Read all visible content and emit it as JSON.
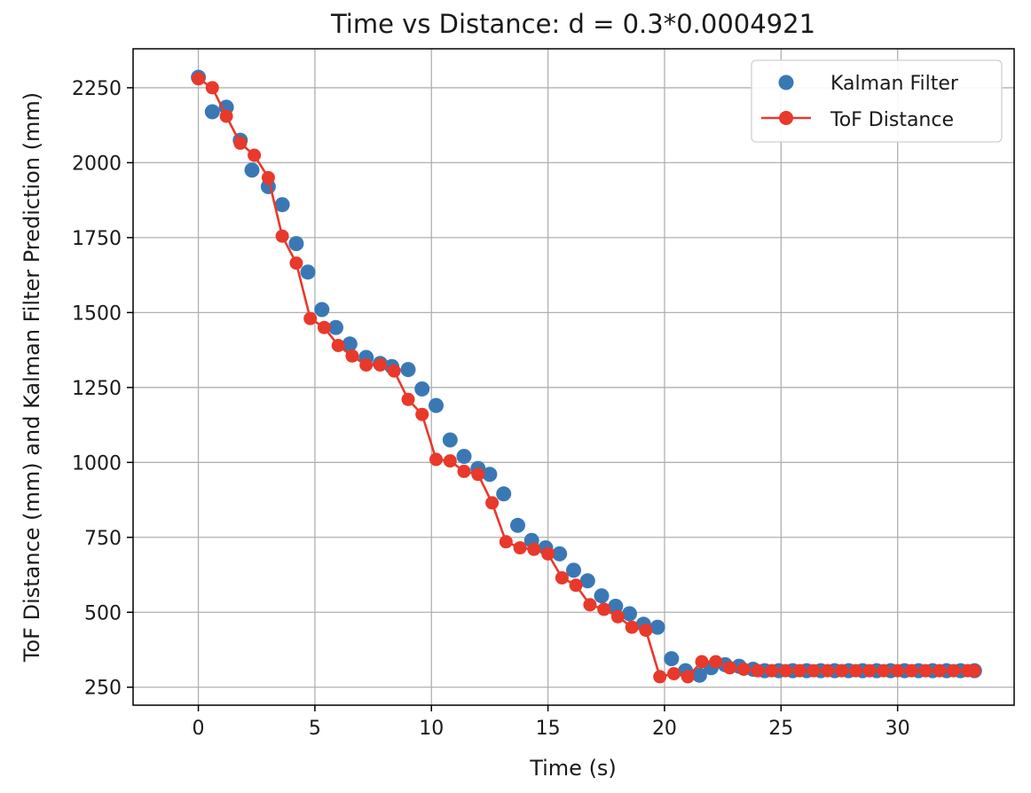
{
  "chart_data": {
    "type": "line",
    "title": "Time vs Distance: d = 0.3*0.0004921",
    "xlabel": "Time (s)",
    "ylabel": "ToF Distance (mm) and Kalman Filter Prediction (mm)",
    "xlim": [
      -2.8,
      35.0
    ],
    "ylim": [
      190,
      2380
    ],
    "xticks": [
      0,
      5,
      10,
      15,
      20,
      25,
      30
    ],
    "yticks": [
      250,
      500,
      750,
      1000,
      1250,
      1500,
      1750,
      2000,
      2250
    ],
    "grid": true,
    "legend_position": "top-right",
    "series": [
      {
        "name": "Kalman Filter",
        "kind": "scatter",
        "color": "#3a78b5",
        "x": [
          0.0,
          0.6,
          1.2,
          1.8,
          2.3,
          3.0,
          3.6,
          4.2,
          4.7,
          5.3,
          5.9,
          6.5,
          7.2,
          7.8,
          8.3,
          9.0,
          9.6,
          10.2,
          10.8,
          11.4,
          12.0,
          12.5,
          13.1,
          13.7,
          14.3,
          14.9,
          15.5,
          16.1,
          16.7,
          17.3,
          17.9,
          18.5,
          19.1,
          19.7,
          20.3,
          20.9,
          21.5,
          22.0,
          22.6,
          23.2,
          23.8,
          24.3,
          24.9,
          25.5,
          26.1,
          26.7,
          27.3,
          27.9,
          28.5,
          29.1,
          29.7,
          30.3,
          30.9,
          31.5,
          32.1,
          32.7,
          33.3
        ],
        "y": [
          2285,
          2170,
          2185,
          2075,
          1975,
          1920,
          1860,
          1730,
          1635,
          1510,
          1450,
          1395,
          1350,
          1330,
          1320,
          1310,
          1245,
          1190,
          1075,
          1020,
          980,
          960,
          895,
          790,
          740,
          715,
          695,
          640,
          605,
          555,
          520,
          495,
          460,
          450,
          345,
          305,
          290,
          315,
          325,
          320,
          310,
          305,
          305,
          305,
          305,
          305,
          305,
          305,
          305,
          305,
          305,
          305,
          305,
          305,
          305,
          305,
          305
        ]
      },
      {
        "name": "ToF Distance",
        "kind": "line-markers",
        "color": "#e8392b",
        "x": [
          0.0,
          0.6,
          1.2,
          1.8,
          2.4,
          3.0,
          3.6,
          4.2,
          4.8,
          5.4,
          6.0,
          6.6,
          7.2,
          7.8,
          8.4,
          9.0,
          9.6,
          10.2,
          10.8,
          11.4,
          12.0,
          12.6,
          13.2,
          13.8,
          14.4,
          15.0,
          15.6,
          16.2,
          16.8,
          17.4,
          18.0,
          18.6,
          19.2,
          19.8,
          20.4,
          21.0,
          21.6,
          22.2,
          22.8,
          23.4,
          24.0,
          24.6,
          25.2,
          25.8,
          26.4,
          27.0,
          27.6,
          28.2,
          28.8,
          29.4,
          30.0,
          30.6,
          31.2,
          31.8,
          32.4,
          33.0,
          33.3
        ],
        "y": [
          2280,
          2250,
          2155,
          2065,
          2025,
          1950,
          1755,
          1665,
          1480,
          1450,
          1390,
          1355,
          1325,
          1325,
          1305,
          1210,
          1160,
          1010,
          1005,
          970,
          960,
          865,
          735,
          715,
          710,
          695,
          615,
          590,
          525,
          510,
          485,
          450,
          440,
          285,
          295,
          285,
          335,
          335,
          315,
          310,
          305,
          305,
          305,
          305,
          305,
          305,
          305,
          305,
          305,
          305,
          305,
          305,
          305,
          305,
          305,
          305,
          305
        ]
      }
    ]
  }
}
